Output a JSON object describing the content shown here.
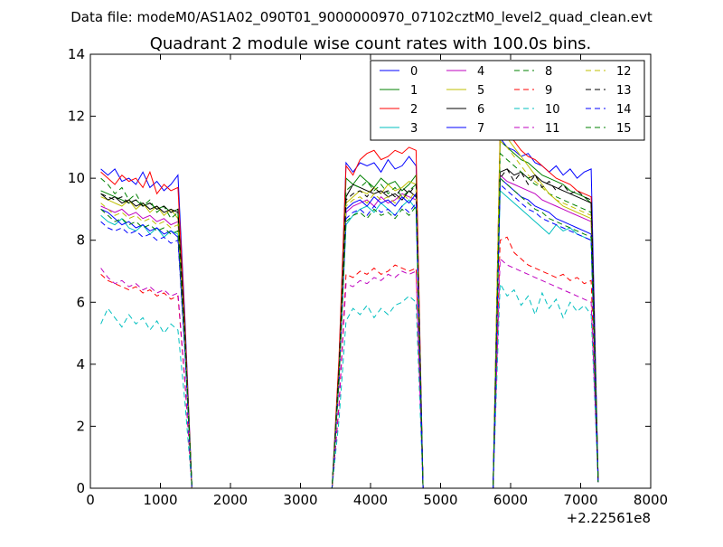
{
  "chart_data": {
    "type": "line",
    "suptitle": "Data file: modeM0/AS1A02_090T01_9000000970_07102cztM0_level2_quad_clean.evt",
    "title": "Quadrant 2 module wise count rates with 100.0s bins.",
    "xlabel": "",
    "ylabel": "",
    "x_offset_label": "+2.22561e8",
    "xlim": [
      0,
      8000
    ],
    "ylim": [
      0,
      14
    ],
    "x_ticks": [
      0,
      1000,
      2000,
      3000,
      4000,
      5000,
      6000,
      7000,
      8000
    ],
    "y_ticks": [
      0,
      2,
      4,
      6,
      8,
      10,
      12,
      14
    ],
    "legend_position": "top-right",
    "legend_columns": 4,
    "x": [
      150,
      250,
      350,
      450,
      550,
      650,
      750,
      850,
      950,
      1050,
      1150,
      1250,
      1350,
      1450,
      1550,
      1650,
      1750,
      1850,
      1950,
      2050,
      2150,
      2250,
      2350,
      2450,
      2550,
      2650,
      2750,
      2850,
      2950,
      3050,
      3150,
      3250,
      3350,
      3450,
      3550,
      3650,
      3750,
      3850,
      3950,
      4050,
      4150,
      4250,
      4350,
      4450,
      4550,
      4650,
      4750,
      4850,
      4950,
      5050,
      5150,
      5250,
      5350,
      5450,
      5550,
      5650,
      5750,
      5850,
      5950,
      6050,
      6150,
      6250,
      6350,
      6450,
      6550,
      6650,
      6750,
      6850,
      6950,
      7050,
      7150,
      7250
    ],
    "series": [
      {
        "name": "0",
        "color": "#0000ff",
        "dash": "solid",
        "values": [
          10.3,
          10.1,
          10.3,
          9.9,
          10.0,
          9.8,
          10.2,
          9.7,
          9.9,
          9.6,
          9.8,
          10.1,
          5.5,
          0,
          0,
          0,
          0,
          0,
          0,
          0,
          0,
          0,
          0,
          0,
          0,
          0,
          0,
          0,
          0,
          0,
          0,
          0,
          0,
          0,
          4.0,
          10.5,
          10.2,
          10.5,
          10.4,
          10.5,
          10.2,
          10.6,
          10.3,
          10.4,
          10.7,
          10.4,
          0,
          0,
          0,
          0,
          0,
          0,
          0,
          0,
          0,
          0,
          0,
          11.3,
          11.0,
          10.9,
          10.7,
          10.8,
          10.5,
          10.4,
          10.2,
          10.4,
          10.1,
          10.3,
          10.0,
          10.2,
          10.3,
          0.2
        ]
      },
      {
        "name": "1",
        "color": "#008000",
        "dash": "solid",
        "values": [
          9.6,
          9.5,
          9.4,
          9.3,
          9.2,
          9.3,
          9.1,
          9.2,
          9.0,
          9.1,
          8.9,
          9.0,
          5.0,
          0,
          0,
          0,
          0,
          0,
          0,
          0,
          0,
          0,
          0,
          0,
          0,
          0,
          0,
          0,
          0,
          0,
          0,
          0,
          0,
          0,
          3.8,
          10.0,
          9.8,
          10.1,
          9.9,
          9.7,
          10.0,
          9.8,
          9.9,
          9.6,
          9.8,
          10.1,
          0,
          0,
          0,
          0,
          0,
          0,
          0,
          0,
          0,
          0,
          0,
          11.2,
          11.0,
          10.8,
          10.6,
          10.5,
          10.3,
          10.1,
          10.0,
          9.9,
          9.8,
          9.6,
          9.5,
          9.4,
          9.2,
          0.2
        ]
      },
      {
        "name": "2",
        "color": "#ff0000",
        "dash": "solid",
        "values": [
          10.2,
          10.0,
          9.8,
          10.1,
          9.9,
          10.0,
          9.7,
          10.2,
          9.5,
          9.8,
          9.6,
          9.7,
          5.3,
          0,
          0,
          0,
          0,
          0,
          0,
          0,
          0,
          0,
          0,
          0,
          0,
          0,
          0,
          0,
          0,
          0,
          0,
          0,
          0,
          0,
          4.2,
          10.4,
          10.1,
          10.6,
          10.8,
          10.9,
          10.6,
          10.7,
          10.9,
          10.8,
          11.0,
          10.9,
          0,
          0,
          0,
          0,
          0,
          0,
          0,
          0,
          0,
          0,
          0,
          11.6,
          11.4,
          11.2,
          10.9,
          10.7,
          10.6,
          10.4,
          10.2,
          10.0,
          9.9,
          9.8,
          9.6,
          9.5,
          9.4,
          0.2
        ]
      },
      {
        "name": "3",
        "color": "#00bfbf",
        "dash": "solid",
        "values": [
          8.8,
          8.6,
          8.5,
          8.7,
          8.4,
          8.3,
          8.5,
          8.2,
          8.4,
          8.1,
          8.3,
          8.2,
          4.5,
          0,
          0,
          0,
          0,
          0,
          0,
          0,
          0,
          0,
          0,
          0,
          0,
          0,
          0,
          0,
          0,
          0,
          0,
          0,
          0,
          0,
          3.5,
          8.5,
          8.8,
          9.0,
          9.1,
          8.9,
          9.2,
          9.0,
          8.8,
          9.1,
          9.3,
          9.0,
          0,
          0,
          0,
          0,
          0,
          0,
          0,
          0,
          0,
          0,
          0,
          9.6,
          9.4,
          9.2,
          9.0,
          8.8,
          8.6,
          8.4,
          8.2,
          8.5,
          8.3,
          8.4,
          8.2,
          8.1,
          8.0,
          0.2
        ]
      },
      {
        "name": "4",
        "color": "#bf00bf",
        "dash": "solid",
        "values": [
          9.1,
          9.0,
          8.9,
          9.0,
          8.8,
          8.9,
          8.7,
          8.8,
          8.6,
          8.7,
          8.5,
          8.6,
          4.7,
          0,
          0,
          0,
          0,
          0,
          0,
          0,
          0,
          0,
          0,
          0,
          0,
          0,
          0,
          0,
          0,
          0,
          0,
          0,
          0,
          0,
          3.6,
          8.9,
          9.1,
          9.2,
          9.3,
          9.1,
          9.4,
          9.2,
          9.3,
          9.5,
          9.4,
          9.3,
          0,
          0,
          0,
          0,
          0,
          0,
          0,
          0,
          0,
          0,
          0,
          10.1,
          9.9,
          9.8,
          9.7,
          9.6,
          9.5,
          9.3,
          9.2,
          9.1,
          9.0,
          8.9,
          8.8,
          8.7,
          8.6,
          0.2
        ]
      },
      {
        "name": "5",
        "color": "#bfbf00",
        "dash": "solid",
        "values": [
          9.4,
          9.3,
          9.2,
          9.1,
          9.3,
          9.0,
          9.2,
          8.9,
          9.1,
          8.8,
          9.0,
          8.7,
          4.8,
          0,
          0,
          0,
          0,
          0,
          0,
          0,
          0,
          0,
          0,
          0,
          0,
          0,
          0,
          0,
          0,
          0,
          0,
          0,
          0,
          0,
          3.7,
          9.2,
          9.4,
          9.6,
          9.5,
          9.7,
          9.5,
          9.8,
          9.6,
          9.7,
          9.9,
          9.8,
          0,
          0,
          0,
          0,
          0,
          0,
          0,
          0,
          0,
          0,
          0,
          11.5,
          11.3,
          11.0,
          10.7,
          10.4,
          10.1,
          9.8,
          9.5,
          9.3,
          9.1,
          9.0,
          8.9,
          8.8,
          8.7,
          0.2
        ]
      },
      {
        "name": "6",
        "color": "#000000",
        "dash": "solid",
        "values": [
          9.5,
          9.3,
          9.4,
          9.2,
          9.3,
          9.1,
          9.2,
          9.0,
          9.1,
          8.9,
          9.0,
          8.9,
          4.9,
          0,
          0,
          0,
          0,
          0,
          0,
          0,
          0,
          0,
          0,
          0,
          0,
          0,
          0,
          0,
          0,
          0,
          0,
          0,
          0,
          0,
          3.8,
          9.4,
          9.8,
          9.7,
          9.6,
          9.5,
          9.6,
          9.4,
          9.5,
          9.3,
          9.6,
          9.4,
          0,
          0,
          0,
          0,
          0,
          0,
          0,
          0,
          0,
          0,
          0,
          10.2,
          10.3,
          10.1,
          10.2,
          10.0,
          10.1,
          9.9,
          9.8,
          9.7,
          9.6,
          9.5,
          9.4,
          9.3,
          9.2,
          0.2
        ]
      },
      {
        "name": "7",
        "color": "#0000ff",
        "dash": "solid",
        "values": [
          9.0,
          8.9,
          8.7,
          8.5,
          8.6,
          8.4,
          8.5,
          8.3,
          8.4,
          8.2,
          8.3,
          8.1,
          4.5,
          0,
          0,
          0,
          0,
          0,
          0,
          0,
          0,
          0,
          0,
          0,
          0,
          0,
          0,
          0,
          0,
          0,
          0,
          0,
          0,
          0,
          3.5,
          9.0,
          9.2,
          9.3,
          9.1,
          9.4,
          9.2,
          9.3,
          9.1,
          9.4,
          9.2,
          9.5,
          0,
          0,
          0,
          0,
          0,
          0,
          0,
          0,
          0,
          0,
          0,
          10.0,
          9.8,
          9.6,
          9.4,
          9.3,
          9.1,
          9.0,
          8.9,
          8.7,
          8.6,
          8.5,
          8.4,
          8.3,
          8.2,
          0.2
        ]
      },
      {
        "name": "8",
        "color": "#008000",
        "dash": "dashed",
        "values": [
          10.0,
          9.8,
          9.5,
          9.7,
          9.3,
          9.5,
          9.1,
          9.3,
          8.9,
          9.1,
          8.7,
          8.9,
          4.9,
          0,
          0,
          0,
          0,
          0,
          0,
          0,
          0,
          0,
          0,
          0,
          0,
          0,
          0,
          0,
          0,
          0,
          0,
          0,
          0,
          0,
          3.7,
          9.6,
          9.8,
          9.7,
          9.9,
          9.6,
          9.8,
          9.5,
          9.7,
          9.4,
          9.6,
          9.8,
          0,
          0,
          0,
          0,
          0,
          0,
          0,
          0,
          0,
          0,
          0,
          10.8,
          10.6,
          10.4,
          10.2,
          10.0,
          9.8,
          9.7,
          9.5,
          9.4,
          9.3,
          9.2,
          9.1,
          9.0,
          8.9,
          0.2
        ]
      },
      {
        "name": "9",
        "color": "#ff0000",
        "dash": "dashed",
        "values": [
          6.9,
          6.7,
          6.6,
          6.5,
          6.4,
          6.5,
          6.3,
          6.4,
          6.2,
          6.3,
          6.1,
          6.2,
          3.4,
          0,
          0,
          0,
          0,
          0,
          0,
          0,
          0,
          0,
          0,
          0,
          0,
          0,
          0,
          0,
          0,
          0,
          0,
          0,
          0,
          0,
          2.7,
          6.9,
          6.8,
          7.0,
          6.9,
          7.1,
          6.9,
          7.0,
          7.2,
          7.1,
          7.0,
          7.1,
          0,
          0,
          0,
          0,
          0,
          0,
          0,
          0,
          0,
          0,
          0,
          8.0,
          8.1,
          7.6,
          7.4,
          7.2,
          7.1,
          7.0,
          6.9,
          6.8,
          6.9,
          6.7,
          6.8,
          6.6,
          6.7,
          0.2
        ]
      },
      {
        "name": "10",
        "color": "#00bfbf",
        "dash": "dashed",
        "values": [
          5.3,
          5.8,
          5.5,
          5.2,
          5.6,
          5.3,
          5.5,
          5.1,
          5.4,
          5.0,
          5.3,
          5.1,
          2.8,
          0,
          0,
          0,
          0,
          0,
          0,
          0,
          0,
          0,
          0,
          0,
          0,
          0,
          0,
          0,
          0,
          0,
          0,
          0,
          0,
          0,
          2.2,
          5.4,
          5.8,
          5.6,
          5.9,
          5.5,
          5.8,
          5.6,
          5.9,
          6.0,
          6.2,
          6.0,
          0,
          0,
          0,
          0,
          0,
          0,
          0,
          0,
          0,
          0,
          0,
          6.6,
          6.2,
          6.4,
          5.9,
          6.2,
          5.6,
          6.3,
          5.8,
          6.1,
          5.5,
          6.0,
          5.7,
          5.9,
          5.6,
          0.2
        ]
      },
      {
        "name": "11",
        "color": "#bf00bf",
        "dash": "dashed",
        "values": [
          7.1,
          6.8,
          6.6,
          6.7,
          6.5,
          6.6,
          6.4,
          6.5,
          6.3,
          6.4,
          6.2,
          6.3,
          3.5,
          0,
          0,
          0,
          0,
          0,
          0,
          0,
          0,
          0,
          0,
          0,
          0,
          0,
          0,
          0,
          0,
          0,
          0,
          0,
          0,
          0,
          2.6,
          6.6,
          6.5,
          6.7,
          6.6,
          6.8,
          6.7,
          6.9,
          6.8,
          7.0,
          6.9,
          7.0,
          0,
          0,
          0,
          0,
          0,
          0,
          0,
          0,
          0,
          0,
          0,
          7.4,
          7.2,
          7.1,
          7.0,
          6.9,
          6.8,
          6.7,
          6.6,
          6.5,
          6.4,
          6.3,
          6.2,
          6.1,
          6.0,
          0.2
        ]
      },
      {
        "name": "12",
        "color": "#bfbf00",
        "dash": "dashed",
        "values": [
          9.2,
          9.0,
          8.8,
          8.9,
          8.7,
          8.8,
          8.6,
          8.7,
          8.5,
          8.6,
          8.4,
          8.5,
          4.7,
          0,
          0,
          0,
          0,
          0,
          0,
          0,
          0,
          0,
          0,
          0,
          0,
          0,
          0,
          0,
          0,
          0,
          0,
          0,
          0,
          0,
          3.6,
          9.1,
          9.3,
          9.4,
          9.2,
          9.5,
          9.3,
          9.4,
          9.2,
          9.5,
          9.3,
          9.6,
          0,
          0,
          0,
          0,
          0,
          0,
          0,
          0,
          0,
          0,
          0,
          11.2,
          11.0,
          10.7,
          10.4,
          10.1,
          9.9,
          9.7,
          9.5,
          9.3,
          9.2,
          9.1,
          9.0,
          8.9,
          8.8,
          0.2
        ]
      },
      {
        "name": "13",
        "color": "#000000",
        "dash": "dashed",
        "values": [
          9.5,
          9.4,
          9.3,
          9.4,
          9.2,
          9.3,
          9.1,
          9.2,
          9.0,
          9.1,
          8.9,
          9.0,
          4.9,
          0,
          0,
          0,
          0,
          0,
          0,
          0,
          0,
          0,
          0,
          0,
          0,
          0,
          0,
          0,
          0,
          0,
          0,
          0,
          0,
          0,
          3.8,
          9.3,
          9.5,
          9.6,
          9.4,
          9.7,
          9.5,
          9.6,
          9.4,
          9.7,
          9.5,
          9.8,
          0,
          0,
          0,
          0,
          0,
          0,
          0,
          0,
          0,
          0,
          0,
          10.0,
          10.3,
          9.9,
          10.2,
          9.8,
          10.1,
          9.7,
          9.9,
          9.6,
          9.8,
          9.5,
          9.6,
          9.4,
          9.3,
          0.2
        ]
      },
      {
        "name": "14",
        "color": "#0000ff",
        "dash": "dashed",
        "values": [
          8.6,
          8.4,
          8.3,
          8.4,
          8.2,
          8.3,
          8.1,
          8.2,
          8.0,
          8.1,
          7.9,
          8.0,
          4.4,
          0,
          0,
          0,
          0,
          0,
          0,
          0,
          0,
          0,
          0,
          0,
          0,
          0,
          0,
          0,
          0,
          0,
          0,
          0,
          0,
          0,
          3.4,
          8.7,
          8.9,
          9.0,
          8.8,
          9.1,
          8.9,
          9.0,
          8.8,
          9.1,
          8.9,
          9.2,
          0,
          0,
          0,
          0,
          0,
          0,
          0,
          0,
          0,
          0,
          0,
          9.8,
          9.6,
          9.4,
          9.2,
          9.0,
          8.9,
          8.7,
          8.6,
          8.5,
          8.4,
          8.3,
          8.2,
          8.1,
          8.0,
          0.2
        ]
      },
      {
        "name": "15",
        "color": "#008000",
        "dash": "dashed",
        "values": [
          9.0,
          8.8,
          8.6,
          8.7,
          8.5,
          8.6,
          8.4,
          8.5,
          8.3,
          8.4,
          8.2,
          8.3,
          4.6,
          0,
          0,
          0,
          0,
          0,
          0,
          0,
          0,
          0,
          0,
          0,
          0,
          0,
          0,
          0,
          0,
          0,
          0,
          0,
          0,
          0,
          3.5,
          8.6,
          8.8,
          8.9,
          8.7,
          9.0,
          8.8,
          8.9,
          8.7,
          9.0,
          8.8,
          9.1,
          0,
          0,
          0,
          0,
          0,
          0,
          0,
          0,
          0,
          0,
          0,
          10.0,
          9.8,
          9.6,
          9.4,
          9.2,
          9.0,
          8.9,
          8.7,
          8.6,
          8.5,
          8.4,
          8.3,
          8.2,
          8.1,
          0.2
        ]
      }
    ]
  }
}
